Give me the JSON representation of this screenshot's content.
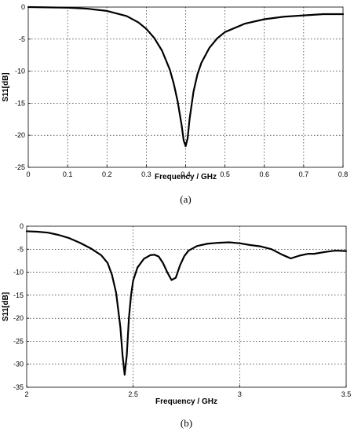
{
  "chart_data": [
    {
      "type": "line",
      "panel": "a",
      "caption": "(a)",
      "xlabel": "Frequency / GHz",
      "ylabel": "S11[dB]",
      "xlim": [
        0,
        0.8
      ],
      "ylim": [
        -25,
        0
      ],
      "xticks": [
        0,
        0.1,
        0.2,
        0.3,
        0.4,
        0.5,
        0.6,
        0.7,
        0.8
      ],
      "yticks": [
        0,
        -5,
        -10,
        -15,
        -20,
        -25
      ],
      "grid": true,
      "series": [
        {
          "x": [
            0,
            0.05,
            0.1,
            0.15,
            0.2,
            0.25,
            0.28,
            0.3,
            0.32,
            0.34,
            0.36,
            0.37,
            0.38,
            0.39,
            0.395,
            0.4,
            0.405,
            0.41,
            0.42,
            0.43,
            0.44,
            0.46,
            0.48,
            0.5,
            0.55,
            0.6,
            0.65,
            0.7,
            0.75,
            0.8
          ],
          "y": [
            0,
            -0.05,
            -0.1,
            -0.25,
            -0.6,
            -1.4,
            -2.4,
            -3.4,
            -4.8,
            -6.8,
            -9.8,
            -12,
            -14.8,
            -18.5,
            -20.8,
            -21.7,
            -20.5,
            -17.5,
            -13.2,
            -10.5,
            -8.7,
            -6.4,
            -4.9,
            -3.9,
            -2.6,
            -1.9,
            -1.5,
            -1.3,
            -1.1,
            -1.1
          ]
        }
      ]
    },
    {
      "type": "line",
      "panel": "b",
      "caption": "(b)",
      "xlabel": "Frequency / GHz",
      "ylabel": "S11[dB]",
      "xlim": [
        2,
        3.5
      ],
      "ylim": [
        -35,
        0
      ],
      "xticks": [
        2,
        2.5,
        3,
        3.5
      ],
      "yticks": [
        0,
        -5,
        -10,
        -15,
        -20,
        -25,
        -30,
        -35
      ],
      "grid": true,
      "series": [
        {
          "x": [
            2,
            2.05,
            2.1,
            2.15,
            2.2,
            2.25,
            2.3,
            2.35,
            2.38,
            2.4,
            2.42,
            2.44,
            2.45,
            2.46,
            2.47,
            2.48,
            2.49,
            2.5,
            2.52,
            2.55,
            2.58,
            2.6,
            2.62,
            2.64,
            2.66,
            2.68,
            2.7,
            2.72,
            2.74,
            2.76,
            2.8,
            2.85,
            2.9,
            2.95,
            3.0,
            3.05,
            3.1,
            3.15,
            3.2,
            3.24,
            3.28,
            3.32,
            3.35,
            3.4,
            3.45,
            3.5
          ],
          "y": [
            -1.1,
            -1.2,
            -1.4,
            -1.9,
            -2.6,
            -3.6,
            -4.8,
            -6.3,
            -8.0,
            -10.5,
            -14.5,
            -22,
            -28,
            -32.3,
            -28,
            -20,
            -15,
            -11.8,
            -9,
            -7.1,
            -6.3,
            -6.2,
            -6.6,
            -8,
            -10,
            -11.7,
            -11.2,
            -8.5,
            -6.5,
            -5.3,
            -4.3,
            -3.8,
            -3.6,
            -3.5,
            -3.7,
            -4.1,
            -4.4,
            -5,
            -6.2,
            -7,
            -6.4,
            -6.0,
            -6.0,
            -5.6,
            -5.3,
            -5.4
          ]
        }
      ]
    }
  ]
}
